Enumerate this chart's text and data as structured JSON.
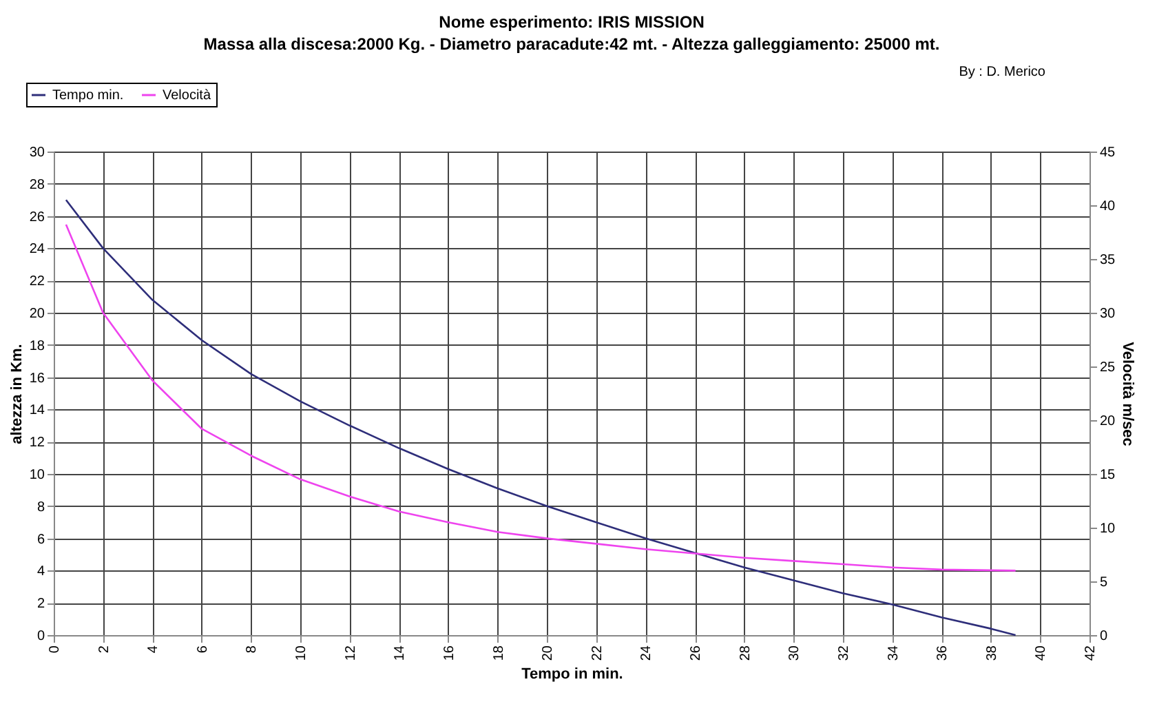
{
  "chart_data": {
    "type": "line",
    "title": "Nome esperimento: IRIS MISSION",
    "subtitle": "Massa alla discesa:2000 Kg. - Diametro paracadute:42 mt. - Altezza galleggiamento: 25000 mt.",
    "xlabel": "Tempo in min.",
    "ylabel": "altezza in Km.",
    "y2label": "Velocità m/sec",
    "annotations": [
      "By :   D. Merico"
    ],
    "xlim": [
      0,
      42
    ],
    "xticks": [
      0,
      2,
      4,
      6,
      8,
      10,
      12,
      14,
      16,
      18,
      20,
      22,
      24,
      26,
      28,
      30,
      32,
      34,
      36,
      38,
      40,
      42
    ],
    "ylim": [
      0,
      30
    ],
    "yticks": [
      0,
      2,
      4,
      6,
      8,
      10,
      12,
      14,
      16,
      18,
      20,
      22,
      24,
      26,
      28,
      30
    ],
    "y2lim": [
      0,
      45
    ],
    "y2ticks": [
      0,
      5,
      10,
      15,
      20,
      25,
      30,
      35,
      40,
      45
    ],
    "grid": true,
    "legend": "top left",
    "series": [
      {
        "name": "Tempo min.",
        "color": "#2e2e7a",
        "x": [
          0.5,
          2,
          4,
          6,
          8,
          10,
          12,
          14,
          16,
          18,
          20,
          22,
          24,
          26,
          28,
          30,
          32,
          34,
          36,
          38,
          39
        ],
        "values": [
          27,
          24,
          20.8,
          18.3,
          16.2,
          14.5,
          13,
          11.6,
          10.3,
          9.1,
          8,
          7,
          6,
          5.1,
          4.2,
          3.4,
          2.6,
          1.9,
          1.1,
          0.4,
          0
        ]
      },
      {
        "name": "Velocità",
        "color": "#ee44ee",
        "axis": "y2",
        "x": [
          0.5,
          2,
          4,
          6,
          8,
          10,
          12,
          14,
          16,
          18,
          20,
          22,
          24,
          26,
          28,
          30,
          32,
          34,
          36,
          39
        ],
        "values": [
          38.2,
          30,
          23.7,
          19.2,
          16.7,
          14.5,
          12.9,
          11.5,
          10.5,
          9.6,
          9,
          8.5,
          8,
          7.6,
          7.2,
          6.9,
          6.6,
          6.3,
          6.1,
          6
        ]
      }
    ]
  }
}
